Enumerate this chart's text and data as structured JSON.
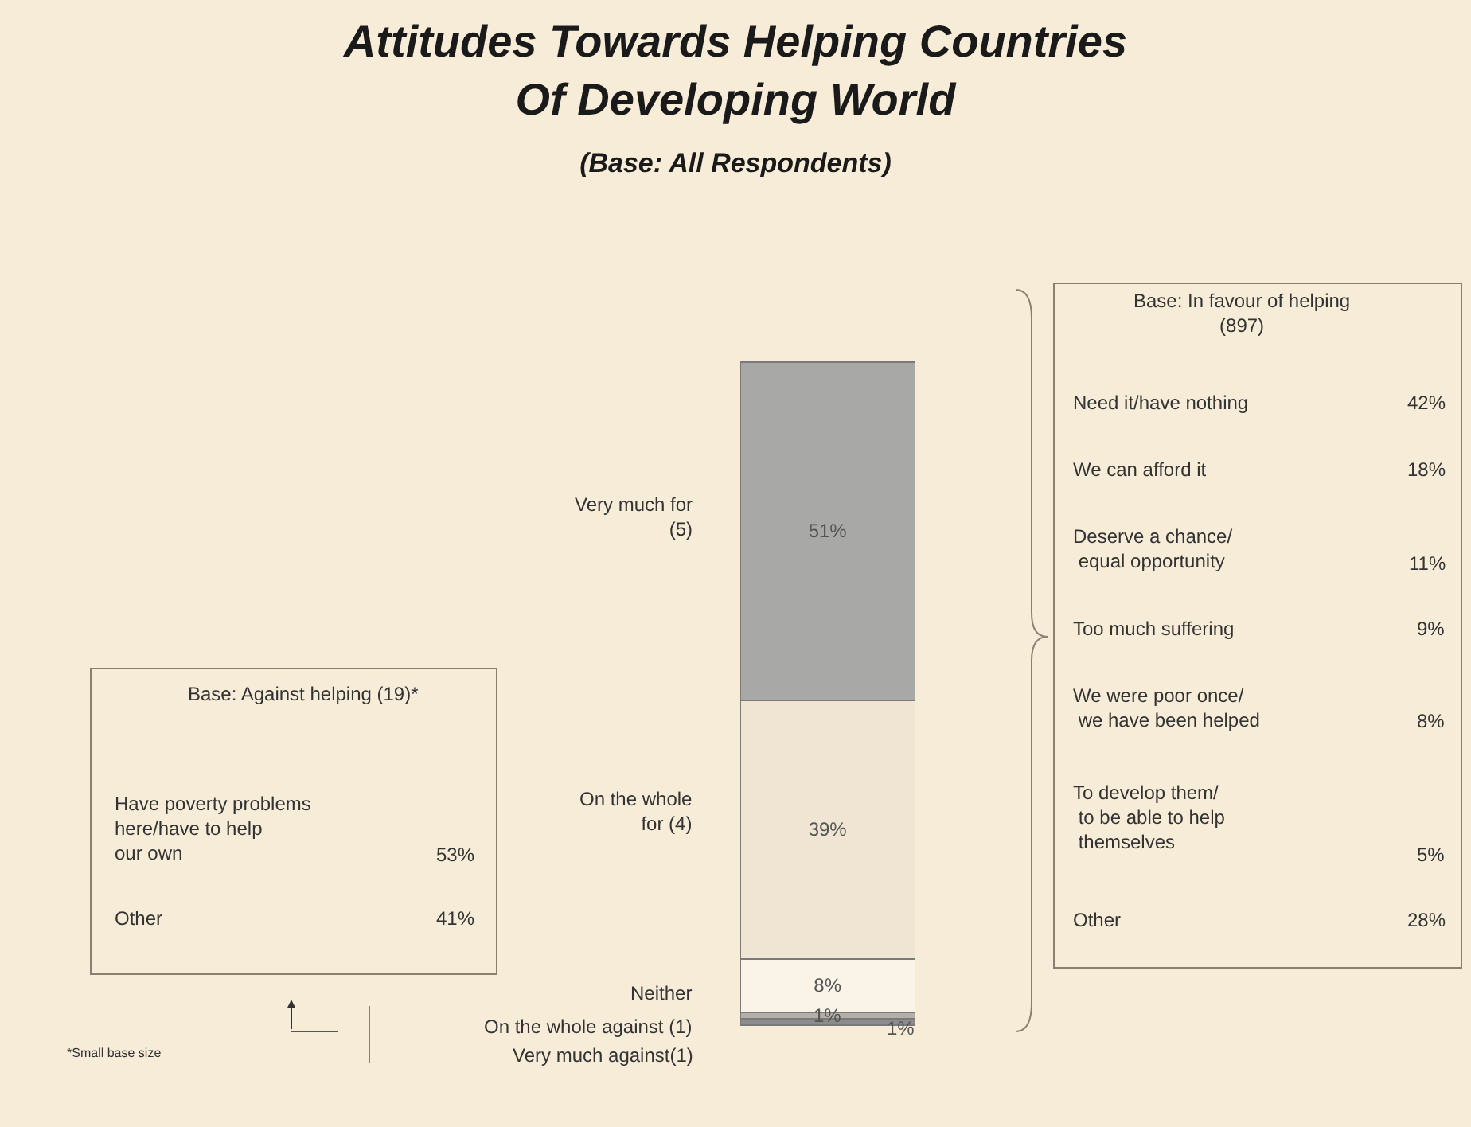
{
  "chart_data": {
    "type": "bar",
    "stacked": true,
    "title": "Attitudes Towards Helping Countries\nOf Developing World",
    "subtitle": "(Base: All Respondents)",
    "categories": [
      null
    ],
    "series": [
      {
        "name": "Very much against(1)",
        "color": "#8c8c8c",
        "values": [
          1
        ],
        "value_labels": [
          "1%"
        ]
      },
      {
        "name": "On the whole against (1)",
        "color": "#b4b0a8",
        "values": [
          1
        ],
        "value_labels": [
          "1%"
        ]
      },
      {
        "name": "Neither",
        "color": "#faf4e8",
        "values": [
          8
        ],
        "value_labels": [
          "8%"
        ]
      },
      {
        "name": "On the whole\nfor (4)",
        "color": "#efe5d2",
        "values": [
          39
        ],
        "value_labels": [
          "39%"
        ]
      },
      {
        "name": "Very much for\n(5)",
        "color": "#a8a8a6",
        "values": [
          51
        ],
        "value_labels": [
          "51%"
        ]
      }
    ],
    "annotations": [
      "Base: Against helping (19)*",
      "Have poverty problems\nhere/have to help\nour own",
      "53%",
      "Other",
      "41%",
      "*Small base size",
      "Base: In favour of helping\n(897)",
      "Need it/have nothing",
      "42%",
      "We can afford it",
      "18%",
      "Deserve a chance/\n equal opportunity",
      "11%",
      "Too much suffering",
      "9%",
      "We were poor once/\n we have been helped",
      "8%",
      "To develop them/\n to be able to help\n themselves",
      "5%",
      "Other",
      "28%"
    ]
  }
}
